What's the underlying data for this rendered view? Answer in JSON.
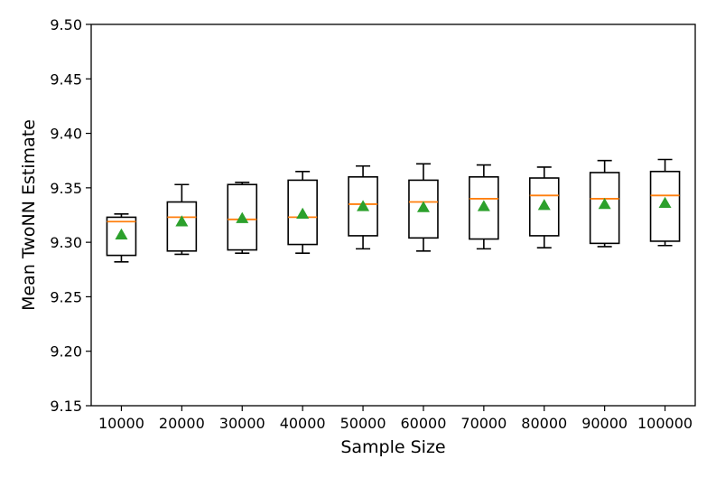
{
  "chart_data": {
    "type": "box",
    "title": "",
    "xlabel": "Sample Size",
    "ylabel": "Mean TwoNN Estimate",
    "ylim": [
      9.15,
      9.5
    ],
    "yticks": [
      "9.15",
      "9.20",
      "9.25",
      "9.30",
      "9.35",
      "9.40",
      "9.45",
      "9.50"
    ],
    "categories": [
      "10000",
      "20000",
      "30000",
      "40000",
      "50000",
      "60000",
      "70000",
      "80000",
      "90000",
      "100000"
    ],
    "boxes": [
      {
        "whisker_low": 9.282,
        "q1": 9.288,
        "median": 9.319,
        "q3": 9.323,
        "whisker_high": 9.326,
        "mean": 9.307
      },
      {
        "whisker_low": 9.289,
        "q1": 9.292,
        "median": 9.323,
        "q3": 9.337,
        "whisker_high": 9.353,
        "mean": 9.319
      },
      {
        "whisker_low": 9.29,
        "q1": 9.293,
        "median": 9.321,
        "q3": 9.353,
        "whisker_high": 9.355,
        "mean": 9.322
      },
      {
        "whisker_low": 9.29,
        "q1": 9.298,
        "median": 9.323,
        "q3": 9.357,
        "whisker_high": 9.365,
        "mean": 9.326
      },
      {
        "whisker_low": 9.294,
        "q1": 9.306,
        "median": 9.335,
        "q3": 9.36,
        "whisker_high": 9.37,
        "mean": 9.333
      },
      {
        "whisker_low": 9.292,
        "q1": 9.304,
        "median": 9.337,
        "q3": 9.357,
        "whisker_high": 9.372,
        "mean": 9.332
      },
      {
        "whisker_low": 9.294,
        "q1": 9.303,
        "median": 9.34,
        "q3": 9.36,
        "whisker_high": 9.371,
        "mean": 9.333
      },
      {
        "whisker_low": 9.295,
        "q1": 9.306,
        "median": 9.343,
        "q3": 9.359,
        "whisker_high": 9.369,
        "mean": 9.334
      },
      {
        "whisker_low": 9.296,
        "q1": 9.299,
        "median": 9.34,
        "q3": 9.364,
        "whisker_high": 9.375,
        "mean": 9.335
      },
      {
        "whisker_low": 9.297,
        "q1": 9.301,
        "median": 9.343,
        "q3": 9.365,
        "whisker_high": 9.376,
        "mean": 9.336
      }
    ],
    "grid": false,
    "legend": "none",
    "colors": {
      "box": "#000000",
      "median": "#ff7f0e",
      "mean": "#2ca02c"
    }
  }
}
